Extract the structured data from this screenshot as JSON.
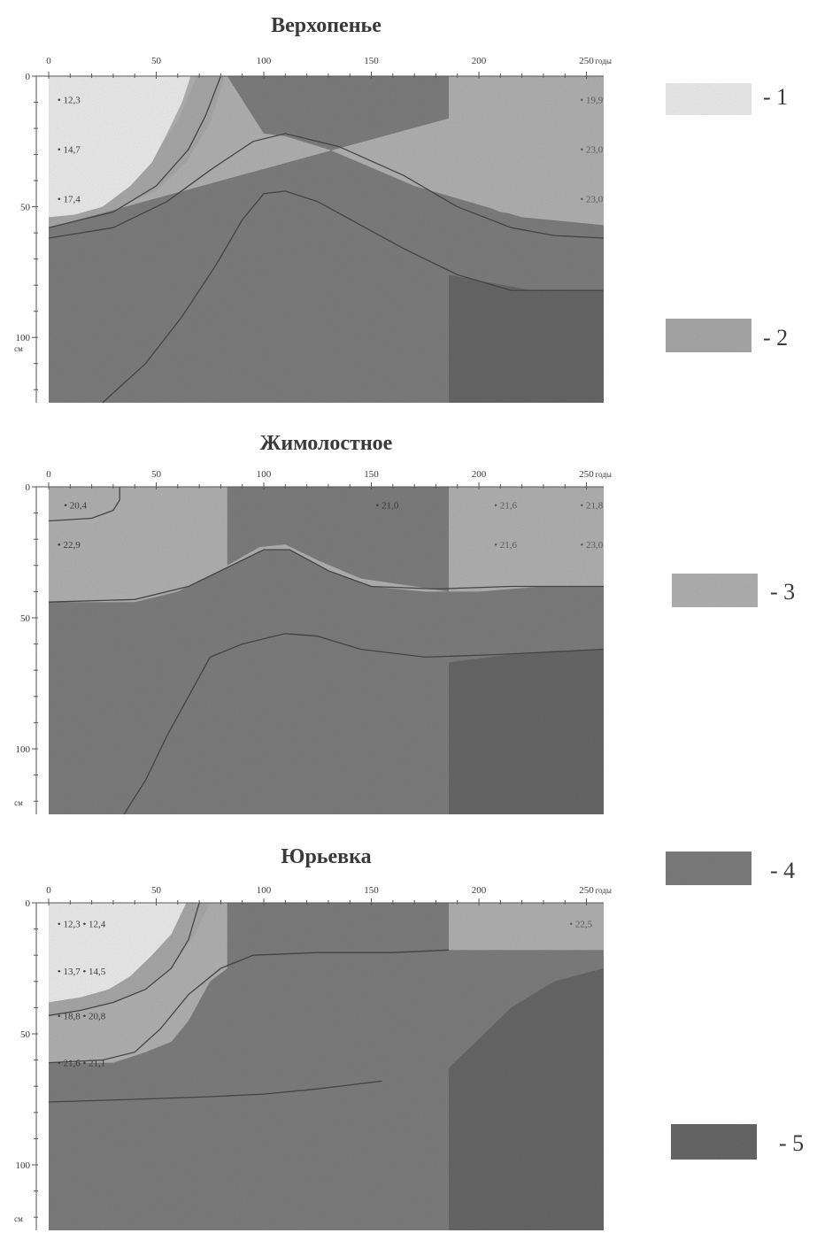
{
  "legend": [
    {
      "label": "- 1",
      "color": "#ebebeb"
    },
    {
      "label": "- 2",
      "color": "#a8a8a8"
    },
    {
      "label": "- 3",
      "color": "#b1b1b1"
    },
    {
      "label": "- 4",
      "color": "#7e7e7e"
    },
    {
      "label": "- 5",
      "color": "#676767"
    }
  ],
  "chart_data": [
    {
      "type": "heatmap",
      "title": "Верхопенье",
      "x_ticks": [
        0,
        50,
        100,
        150,
        200,
        250
      ],
      "x_unit": "годы",
      "xlim": [
        0,
        258
      ],
      "y_ticks": [
        0,
        50,
        100
      ],
      "y_unit": "см",
      "ylim": [
        0,
        125
      ],
      "regions": [
        {
          "class": 4,
          "points": [
            [
              0,
              125
            ],
            [
              0,
              0
            ],
            [
              258,
              0
            ],
            [
              258,
              125
            ]
          ]
        },
        {
          "class": 3,
          "points": [
            [
              0,
              58
            ],
            [
              0,
              0
            ],
            [
              83,
              0
            ],
            [
              83,
              0
            ],
            [
              100,
              22
            ],
            [
              110,
              23
            ],
            [
              130,
              28
            ],
            [
              150,
              35
            ],
            [
              170,
              42
            ],
            [
              195,
              48
            ],
            [
              220,
              54
            ],
            [
              258,
              57
            ],
            [
              258,
              0
            ]
          ]
        },
        {
          "class": 2,
          "points": [
            [
              0,
              0
            ],
            [
              64,
              0
            ],
            [
              83,
              0
            ],
            [
              83,
              0
            ],
            [
              0,
              0
            ]
          ]
        },
        {
          "class": 3,
          "points": [
            [
              186,
              0
            ],
            [
              258,
              0
            ],
            [
              258,
              57
            ],
            [
              235,
              55
            ],
            [
              210,
              52
            ],
            [
              186,
              44
            ]
          ]
        },
        {
          "class": 5,
          "points": [
            [
              186,
              125
            ],
            [
              186,
              76
            ],
            [
              205,
              79
            ],
            [
              225,
              82
            ],
            [
              258,
              82
            ],
            [
              258,
              125
            ]
          ]
        },
        {
          "class": 2,
          "points": [
            [
              0,
              54
            ],
            [
              20,
              50
            ],
            [
              34,
              43
            ],
            [
              48,
              32
            ],
            [
              60,
              17
            ],
            [
              69,
              0
            ],
            [
              82,
              0
            ],
            [
              75,
              18
            ],
            [
              64,
              33
            ],
            [
              50,
              44
            ],
            [
              30,
              51
            ],
            [
              0,
              58
            ]
          ]
        },
        {
          "class": 1,
          "points": [
            [
              0,
              0
            ],
            [
              0,
              54
            ],
            [
              12,
              53
            ],
            [
              25,
              50
            ],
            [
              38,
              42
            ],
            [
              48,
              33
            ],
            [
              55,
              22
            ],
            [
              62,
              10
            ],
            [
              66,
              0
            ]
          ]
        },
        {
          "class": 4,
          "points": [
            [
              25,
              125
            ],
            [
              45,
              110
            ],
            [
              60,
              95
            ],
            [
              75,
              80
            ],
            [
              88,
              63
            ],
            [
              97,
              48
            ],
            [
              107,
              44
            ],
            [
              118,
              47
            ],
            [
              135,
              55
            ],
            [
              150,
              63
            ],
            [
              160,
              70
            ],
            [
              186,
              76
            ],
            [
              186,
              125
            ]
          ]
        }
      ],
      "lines": [
        [
          [
            0,
            58
          ],
          [
            30,
            52
          ],
          [
            50,
            42
          ],
          [
            65,
            28
          ],
          [
            73,
            15
          ],
          [
            80,
            0
          ]
        ],
        [
          [
            0,
            62
          ],
          [
            30,
            58
          ],
          [
            55,
            48
          ],
          [
            75,
            36
          ],
          [
            95,
            25
          ],
          [
            110,
            22
          ],
          [
            135,
            27
          ],
          [
            165,
            38
          ],
          [
            190,
            50
          ],
          [
            215,
            58
          ],
          [
            235,
            61
          ],
          [
            258,
            62
          ]
        ],
        [
          [
            25,
            125
          ],
          [
            45,
            110
          ],
          [
            62,
            92
          ],
          [
            78,
            72
          ],
          [
            90,
            55
          ],
          [
            100,
            45
          ],
          [
            110,
            44
          ],
          [
            125,
            48
          ],
          [
            145,
            57
          ],
          [
            165,
            66
          ],
          [
            190,
            76
          ],
          [
            215,
            82
          ],
          [
            258,
            82
          ]
        ]
      ],
      "labels": [
        {
          "x": 2,
          "y": 9,
          "text": "12,3"
        },
        {
          "x": 2,
          "y": 28,
          "text": "14,7"
        },
        {
          "x": 2,
          "y": 47,
          "text": "17,4"
        },
        {
          "x": 245,
          "y": 9,
          "text": "19,9"
        },
        {
          "x": 245,
          "y": 28,
          "text": "23,0"
        },
        {
          "x": 245,
          "y": 47,
          "text": "23,0"
        }
      ]
    },
    {
      "type": "heatmap",
      "title": "Жимолостное",
      "x_ticks": [
        0,
        50,
        100,
        150,
        200,
        250
      ],
      "x_unit": "годы",
      "xlim": [
        0,
        258
      ],
      "y_ticks": [
        0,
        50,
        100
      ],
      "y_unit": "см",
      "ylim": [
        0,
        125
      ],
      "regions": [
        {
          "class": 4,
          "points": [
            [
              0,
              125
            ],
            [
              0,
              0
            ],
            [
              258,
              0
            ],
            [
              258,
              125
            ]
          ]
        },
        {
          "class": 3,
          "points": [
            [
              0,
              0
            ],
            [
              83,
              0
            ],
            [
              83,
              30
            ],
            [
              98,
              23
            ],
            [
              110,
              22
            ],
            [
              125,
              28
            ],
            [
              145,
              35
            ],
            [
              170,
              38
            ],
            [
              186,
              40
            ],
            [
              186,
              0
            ],
            [
              258,
              0
            ],
            [
              258,
              38
            ],
            [
              230,
              38
            ],
            [
              200,
              40
            ],
            [
              175,
              40
            ],
            [
              150,
              38
            ],
            [
              130,
              32
            ],
            [
              112,
              24
            ],
            [
              100,
              24
            ],
            [
              80,
              32
            ],
            [
              60,
              40
            ],
            [
              40,
              44
            ],
            [
              0,
              44
            ]
          ]
        },
        {
          "class": 5,
          "points": [
            [
              186,
              125
            ],
            [
              186,
              67
            ],
            [
              215,
              64
            ],
            [
              258,
              62
            ],
            [
              258,
              125
            ]
          ]
        }
      ],
      "lines": [
        [
          [
            0,
            13
          ],
          [
            20,
            12
          ],
          [
            30,
            9
          ],
          [
            33,
            5
          ],
          [
            33,
            0
          ]
        ],
        [
          [
            0,
            44
          ],
          [
            40,
            43
          ],
          [
            65,
            38
          ],
          [
            85,
            30
          ],
          [
            100,
            24
          ],
          [
            112,
            24
          ],
          [
            130,
            32
          ],
          [
            150,
            38
          ],
          [
            180,
            39
          ],
          [
            215,
            38
          ],
          [
            258,
            38
          ]
        ],
        [
          [
            35,
            125
          ],
          [
            45,
            112
          ],
          [
            55,
            95
          ],
          [
            65,
            80
          ],
          [
            75,
            65
          ],
          [
            90,
            60
          ],
          [
            110,
            56
          ],
          [
            125,
            57
          ],
          [
            145,
            62
          ],
          [
            175,
            65
          ],
          [
            210,
            64
          ],
          [
            258,
            62
          ]
        ]
      ],
      "labels": [
        {
          "x": 5,
          "y": 7,
          "text": "20,4"
        },
        {
          "x": 2,
          "y": 22,
          "text": "22,9"
        },
        {
          "x": 150,
          "y": 7,
          "text": "21,0"
        },
        {
          "x": 205,
          "y": 7,
          "text": "21,6"
        },
        {
          "x": 245,
          "y": 7,
          "text": "21,8"
        },
        {
          "x": 205,
          "y": 22,
          "text": "21,6"
        },
        {
          "x": 245,
          "y": 22,
          "text": "23,0"
        }
      ]
    },
    {
      "type": "heatmap",
      "title": "Юрьевка",
      "x_ticks": [
        0,
        50,
        100,
        150,
        200,
        250
      ],
      "x_unit": "годы",
      "xlim": [
        0,
        258
      ],
      "y_ticks": [
        0,
        50,
        100
      ],
      "y_unit": "см",
      "ylim": [
        0,
        125
      ],
      "regions": [
        {
          "class": 4,
          "points": [
            [
              0,
              125
            ],
            [
              0,
              0
            ],
            [
              258,
              0
            ],
            [
              258,
              125
            ]
          ]
        },
        {
          "class": 3,
          "points": [
            [
              0,
              0
            ],
            [
              83,
              0
            ],
            [
              83,
              25
            ],
            [
              75,
              30
            ],
            [
              65,
              45
            ],
            [
              57,
              53
            ],
            [
              45,
              57
            ],
            [
              30,
              61
            ],
            [
              0,
              61
            ]
          ]
        },
        {
          "class": 3,
          "points": [
            [
              186,
              0
            ],
            [
              258,
              0
            ],
            [
              258,
              18
            ],
            [
              186,
              18
            ]
          ]
        },
        {
          "class": 5,
          "points": [
            [
              186,
              125
            ],
            [
              186,
              63
            ],
            [
              200,
              52
            ],
            [
              215,
              40
            ],
            [
              235,
              30
            ],
            [
              258,
              25
            ],
            [
              258,
              125
            ]
          ]
        },
        {
          "class": 1,
          "points": [
            [
              0,
              0
            ],
            [
              0,
              38
            ],
            [
              15,
              36
            ],
            [
              28,
              33
            ],
            [
              38,
              28
            ],
            [
              48,
              20
            ],
            [
              57,
              12
            ],
            [
              62,
              5
            ],
            [
              64,
              0
            ]
          ]
        },
        {
          "class": 2,
          "points": [
            [
              0,
              38
            ],
            [
              15,
              36
            ],
            [
              28,
              33
            ],
            [
              38,
              28
            ],
            [
              48,
              20
            ],
            [
              57,
              12
            ],
            [
              64,
              0
            ],
            [
              75,
              0
            ],
            [
              68,
              12
            ],
            [
              57,
              25
            ],
            [
              45,
              33
            ],
            [
              30,
              38
            ],
            [
              15,
              41
            ],
            [
              0,
              43
            ]
          ]
        }
      ],
      "lines": [
        [
          [
            0,
            43
          ],
          [
            15,
            41
          ],
          [
            30,
            38
          ],
          [
            45,
            33
          ],
          [
            57,
            25
          ],
          [
            65,
            14
          ],
          [
            70,
            0
          ]
        ],
        [
          [
            0,
            61
          ],
          [
            25,
            60
          ],
          [
            40,
            57
          ],
          [
            52,
            48
          ],
          [
            65,
            35
          ],
          [
            80,
            25
          ],
          [
            95,
            20
          ],
          [
            125,
            19
          ],
          [
            160,
            19
          ],
          [
            186,
            18
          ]
        ],
        [
          [
            0,
            76
          ],
          [
            40,
            75
          ],
          [
            75,
            74
          ],
          [
            100,
            73
          ],
          [
            125,
            71
          ],
          [
            155,
            68
          ]
        ]
      ],
      "labels": [
        {
          "x": 2,
          "y": 8,
          "text": "12,3 • 12,4"
        },
        {
          "x": 2,
          "y": 26,
          "text": "13,7 • 14,5"
        },
        {
          "x": 2,
          "y": 43,
          "text": "18,8 • 20,8"
        },
        {
          "x": 2,
          "y": 61,
          "text": "21,6 • 21,1"
        },
        {
          "x": 240,
          "y": 8,
          "text": "22,5"
        }
      ]
    }
  ]
}
